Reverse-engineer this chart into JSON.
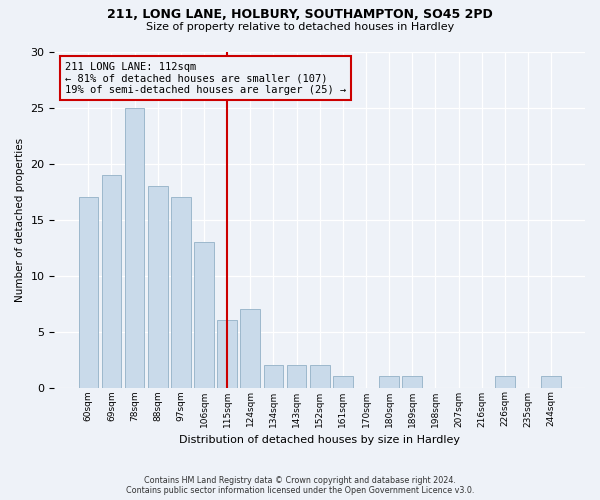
{
  "title1": "211, LONG LANE, HOLBURY, SOUTHAMPTON, SO45 2PD",
  "title2": "Size of property relative to detached houses in Hardley",
  "xlabel": "Distribution of detached houses by size in Hardley",
  "ylabel": "Number of detached properties",
  "categories": [
    "60sqm",
    "69sqm",
    "78sqm",
    "88sqm",
    "97sqm",
    "106sqm",
    "115sqm",
    "124sqm",
    "134sqm",
    "143sqm",
    "152sqm",
    "161sqm",
    "170sqm",
    "180sqm",
    "189sqm",
    "198sqm",
    "207sqm",
    "216sqm",
    "226sqm",
    "235sqm",
    "244sqm"
  ],
  "values": [
    17,
    19,
    25,
    18,
    17,
    13,
    6,
    7,
    2,
    2,
    2,
    1,
    0,
    1,
    1,
    0,
    0,
    0,
    1,
    0,
    1
  ],
  "bar_color": "#c9daea",
  "bar_edgecolor": "#9db8cc",
  "vline_color": "#cc0000",
  "annotation_text": "211 LONG LANE: 112sqm\n← 81% of detached houses are smaller (107)\n19% of semi-detached houses are larger (25) →",
  "annotation_box_color": "#cc0000",
  "ylim": [
    0,
    30
  ],
  "yticks": [
    0,
    5,
    10,
    15,
    20,
    25,
    30
  ],
  "footer_line1": "Contains HM Land Registry data © Crown copyright and database right 2024.",
  "footer_line2": "Contains public sector information licensed under the Open Government Licence v3.0.",
  "background_color": "#eef2f8"
}
